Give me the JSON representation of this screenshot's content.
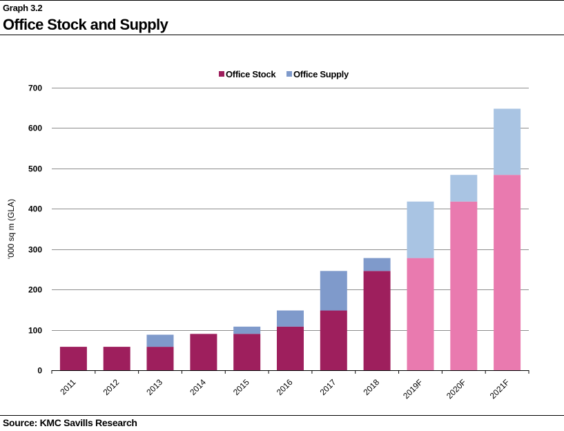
{
  "header": {
    "graph_number": "Graph 3.2",
    "title": "Office Stock and Supply"
  },
  "footer": {
    "source": "Source: KMC Savills Research"
  },
  "chart_data": {
    "type": "bar",
    "stacked": true,
    "categories": [
      "2011",
      "2012",
      "2013",
      "2014",
      "2015",
      "2016",
      "2017",
      "2018",
      "2019F",
      "2020F",
      "2021F"
    ],
    "series": [
      {
        "name": "Office Stock",
        "values": [
          58,
          58,
          58,
          90,
          90,
          108,
          148,
          246,
          278,
          418,
          484
        ],
        "color": "#9e1f5d",
        "forecast_color": "#e97aaf"
      },
      {
        "name": "Office Supply",
        "values": [
          0,
          0,
          30,
          0,
          18,
          40,
          98,
          32,
          140,
          66,
          164
        ],
        "color": "#7f9acb",
        "forecast_color": "#a9c4e3"
      }
    ],
    "forecast_categories": [
      "2019F",
      "2020F",
      "2021F"
    ],
    "xlabel": "",
    "ylabel": "'000 sq m (GLA)",
    "ylim": [
      0,
      700
    ],
    "yticks": [
      0,
      100,
      200,
      300,
      400,
      500,
      600,
      700
    ],
    "grid": true,
    "legend_position": "top-center"
  }
}
